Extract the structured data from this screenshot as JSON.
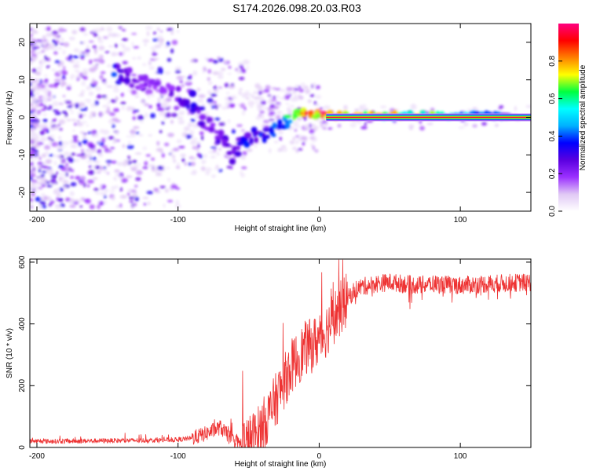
{
  "title": "S174.2026.098.20.03.R03",
  "chart_data": [
    {
      "type": "heatmap",
      "name": "spectrogram",
      "xlabel": "Height of straight line (km)",
      "ylabel": "Frequency (Hz)",
      "xlim": [
        -205,
        150
      ],
      "ylim": [
        -25,
        25
      ],
      "xticks": [
        -200,
        -100,
        0,
        100
      ],
      "yticks": [
        20,
        10,
        0,
        -10,
        -20
      ],
      "colorbar": {
        "label": "Normalized spectral amplitude",
        "range": [
          0,
          1
        ],
        "ticks": [
          0.0,
          0.2,
          0.4,
          0.6,
          0.8
        ],
        "colors": [
          "#ffffff",
          "#e0c8f5",
          "#9b30ff",
          "#5a00e0",
          "#0000ff",
          "#00b0ff",
          "#00ffff",
          "#00ff40",
          "#ffff00",
          "#ff8000",
          "#ff0000",
          "#ff0080"
        ]
      },
      "carrier": {
        "x_start": 5,
        "x_end": 150,
        "frequency": 0,
        "amplitude": 0.95
      },
      "ridge": [
        {
          "x": -145,
          "y": 12.5,
          "a": 0.35
        },
        {
          "x": -130,
          "y": 10,
          "a": 0.22
        },
        {
          "x": -110,
          "y": 7,
          "a": 0.2
        },
        {
          "x": -90,
          "y": 4.5,
          "a": 0.3
        },
        {
          "x": -80,
          "y": -2,
          "a": 0.28
        },
        {
          "x": -75,
          "y": -3,
          "a": 0.25
        },
        {
          "x": -62,
          "y": -10,
          "a": 0.3
        },
        {
          "x": -45,
          "y": -4,
          "a": 0.35
        },
        {
          "x": -38,
          "y": -5,
          "a": 0.4
        },
        {
          "x": -28,
          "y": -2,
          "a": 0.4
        },
        {
          "x": -20,
          "y": 0,
          "a": 0.6
        },
        {
          "x": -12,
          "y": 1.5,
          "a": 0.8
        },
        {
          "x": -5,
          "y": 0.8,
          "a": 0.85
        },
        {
          "x": 5,
          "y": 0.5,
          "a": 0.9
        },
        {
          "x": 135,
          "y": 0.5,
          "a": 0.4
        }
      ]
    },
    {
      "type": "line",
      "name": "snr",
      "xlabel": "Height of straight line (km)",
      "ylabel": "SNR (10 * v/v)",
      "xlim": [
        -205,
        150
      ],
      "ylim": [
        0,
        610
      ],
      "xticks": [
        -200,
        -100,
        0,
        100
      ],
      "yticks": [
        0,
        200,
        400,
        600
      ],
      "color": "#ee3333",
      "series": [
        {
          "name": "SNR",
          "x": [
            -205,
            -180,
            -150,
            -120,
            -100,
            -90,
            -80,
            -70,
            -65,
            -60,
            -55,
            -50,
            -45,
            -40,
            -35,
            -30,
            -25,
            -20,
            -15,
            -10,
            -5,
            0,
            5,
            10,
            15,
            20,
            25,
            30,
            35,
            40,
            50,
            60,
            70,
            80,
            100,
            120,
            150
          ],
          "y": [
            20,
            20,
            22,
            23,
            25,
            30,
            45,
            65,
            40,
            15,
            10,
            15,
            35,
            70,
            110,
            160,
            210,
            260,
            290,
            320,
            330,
            350,
            380,
            420,
            450,
            480,
            510,
            520,
            525,
            530,
            535,
            530,
            525,
            530,
            525,
            530,
            535
          ]
        }
      ]
    }
  ]
}
